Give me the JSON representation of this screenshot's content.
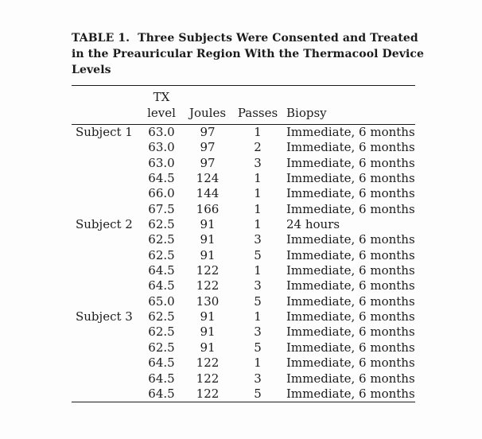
{
  "page": {
    "background": "#fdfdfd",
    "text_color": "#1b1b1b",
    "rule_color": "#1c1c1c"
  },
  "table": {
    "title_lines": [
      "TABLE 1.  Three Subjects Were Consented and Treated",
      "in the Preauricular Region With the Thermacool Device",
      "Levels"
    ],
    "columns": [
      {
        "key": "subject",
        "label": ""
      },
      {
        "key": "tx",
        "label": "TX\nlevel"
      },
      {
        "key": "joules",
        "label": "Joules"
      },
      {
        "key": "passes",
        "label": "Passes"
      },
      {
        "key": "biopsy",
        "label": "Biopsy"
      }
    ],
    "rows": [
      {
        "subject": "Subject 1",
        "tx": "63.0",
        "joules": "97",
        "passes": "1",
        "biopsy": "Immediate, 6 months"
      },
      {
        "subject": "",
        "tx": "63.0",
        "joules": "97",
        "passes": "2",
        "biopsy": "Immediate, 6 months"
      },
      {
        "subject": "",
        "tx": "63.0",
        "joules": "97",
        "passes": "3",
        "biopsy": "Immediate, 6 months"
      },
      {
        "subject": "",
        "tx": "64.5",
        "joules": "124",
        "passes": "1",
        "biopsy": "Immediate, 6 months"
      },
      {
        "subject": "",
        "tx": "66.0",
        "joules": "144",
        "passes": "1",
        "biopsy": "Immediate, 6 months"
      },
      {
        "subject": "",
        "tx": "67.5",
        "joules": "166",
        "passes": "1",
        "biopsy": "Immediate, 6 months"
      },
      {
        "subject": "Subject 2",
        "tx": "62.5",
        "joules": "91",
        "passes": "1",
        "biopsy": "24 hours"
      },
      {
        "subject": "",
        "tx": "62.5",
        "joules": "91",
        "passes": "3",
        "biopsy": "Immediate, 6 months"
      },
      {
        "subject": "",
        "tx": "62.5",
        "joules": "91",
        "passes": "5",
        "biopsy": "Immediate, 6 months"
      },
      {
        "subject": "",
        "tx": "64.5",
        "joules": "122",
        "passes": "1",
        "biopsy": "Immediate, 6 months"
      },
      {
        "subject": "",
        "tx": "64.5",
        "joules": "122",
        "passes": "3",
        "biopsy": "Immediate, 6 months"
      },
      {
        "subject": "",
        "tx": "65.0",
        "joules": "130",
        "passes": "5",
        "biopsy": "Immediate, 6 months"
      },
      {
        "subject": "Subject 3",
        "tx": "62.5",
        "joules": "91",
        "passes": "1",
        "biopsy": "Immediate, 6 months"
      },
      {
        "subject": "",
        "tx": "62.5",
        "joules": "91",
        "passes": "3",
        "biopsy": "Immediate, 6 months"
      },
      {
        "subject": "",
        "tx": "62.5",
        "joules": "91",
        "passes": "5",
        "biopsy": "Immediate, 6 months"
      },
      {
        "subject": "",
        "tx": "64.5",
        "joules": "122",
        "passes": "1",
        "biopsy": "Immediate, 6 months"
      },
      {
        "subject": "",
        "tx": "64.5",
        "joules": "122",
        "passes": "3",
        "biopsy": "Immediate, 6 months"
      },
      {
        "subject": "",
        "tx": "64.5",
        "joules": "122",
        "passes": "5",
        "biopsy": "Immediate, 6 months"
      }
    ]
  }
}
